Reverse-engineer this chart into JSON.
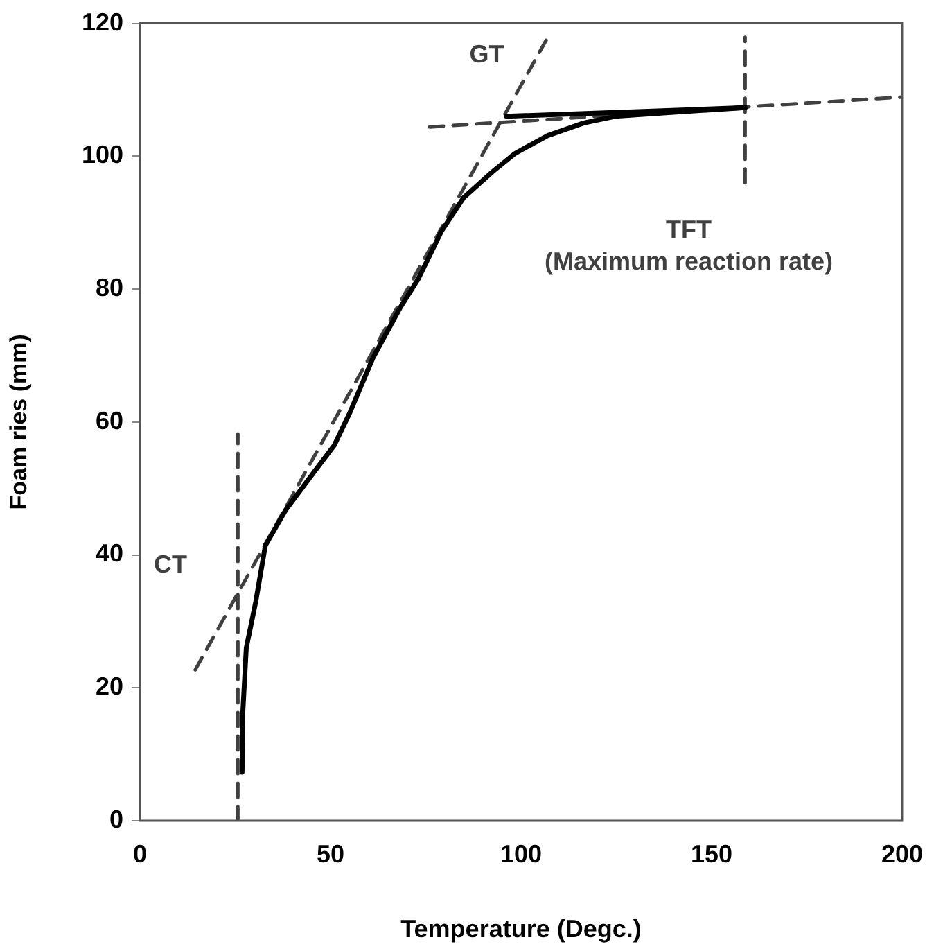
{
  "chart_data": {
    "type": "line",
    "xlabel": "Temperature (Degc.)",
    "ylabel": "Foam ries (mm)",
    "xlim": [
      0,
      200
    ],
    "ylim": [
      0,
      120
    ],
    "xticks": [
      0,
      50,
      100,
      150,
      200
    ],
    "yticks": [
      0,
      20,
      40,
      60,
      80,
      100,
      120
    ],
    "marker": "none",
    "line_style": "solid",
    "series": [
      {
        "color": "#000000",
        "x": [
          26.8,
          27,
          27.9,
          30.4,
          32.9,
          38.3,
          45.6,
          51,
          55,
          61.1,
          68.4,
          73,
          79.2,
          85,
          92.6,
          98.4,
          107,
          116.5,
          124.8,
          140,
          158.8
        ],
        "values": [
          7.3,
          16.4,
          26,
          33,
          41.4,
          46.8,
          52.4,
          56.5,
          61.3,
          69.6,
          77.3,
          81.5,
          88.8,
          93.8,
          97.7,
          100.4,
          103.1,
          105,
          106,
          106.6,
          107.3
        ]
      },
      {
        "color": "#000000",
        "x": [
          96.2,
          158.8
        ],
        "values": [
          106,
          107.3
        ]
      },
      {
        "color": "#404040",
        "line_style": "dashed",
        "x": [
          25.7,
          25.7
        ],
        "values": [
          0,
          58.2
        ]
      },
      {
        "color": "#404040",
        "line_style": "dashed",
        "x": [
          14.5,
          107.8
        ],
        "values": [
          22.7,
          118.7
        ]
      },
      {
        "color": "#404040",
        "line_style": "dashed",
        "x": [
          76,
          200
        ],
        "values": [
          104.4,
          108.9
        ]
      },
      {
        "color": "#404040",
        "line_style": "dashed",
        "x": [
          158.8,
          158.8
        ],
        "values": [
          96,
          117.9
        ]
      }
    ],
    "annotations": [
      "GT",
      "CT",
      "TFT",
      "(Maximum reaction rate)"
    ]
  }
}
